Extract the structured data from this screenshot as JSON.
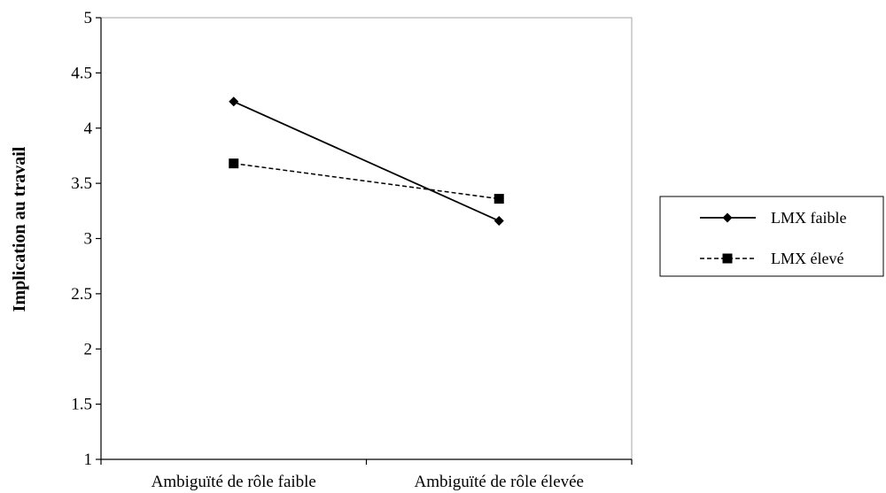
{
  "chart_data": {
    "type": "line",
    "title": "",
    "xlabel": "",
    "ylabel": "Implication au travail",
    "categories": [
      "Ambiguïté de rôle faible",
      "Ambiguïté de rôle élevée"
    ],
    "series": [
      {
        "name": "LMX faible",
        "values": [
          4.24,
          3.16
        ],
        "line_style": "solid",
        "marker": "diamond"
      },
      {
        "name": "LMX élevé",
        "values": [
          3.68,
          3.36
        ],
        "line_style": "dashed",
        "marker": "square"
      }
    ],
    "ylim": [
      1,
      5
    ],
    "y_ticks": [
      "1",
      "1.5",
      "2",
      "2.5",
      "3",
      "3.5",
      "4",
      "4.5",
      "5"
    ],
    "grid": false,
    "legend_position": "right",
    "colors": {
      "line": "#000000",
      "background": "#ffffff"
    }
  }
}
